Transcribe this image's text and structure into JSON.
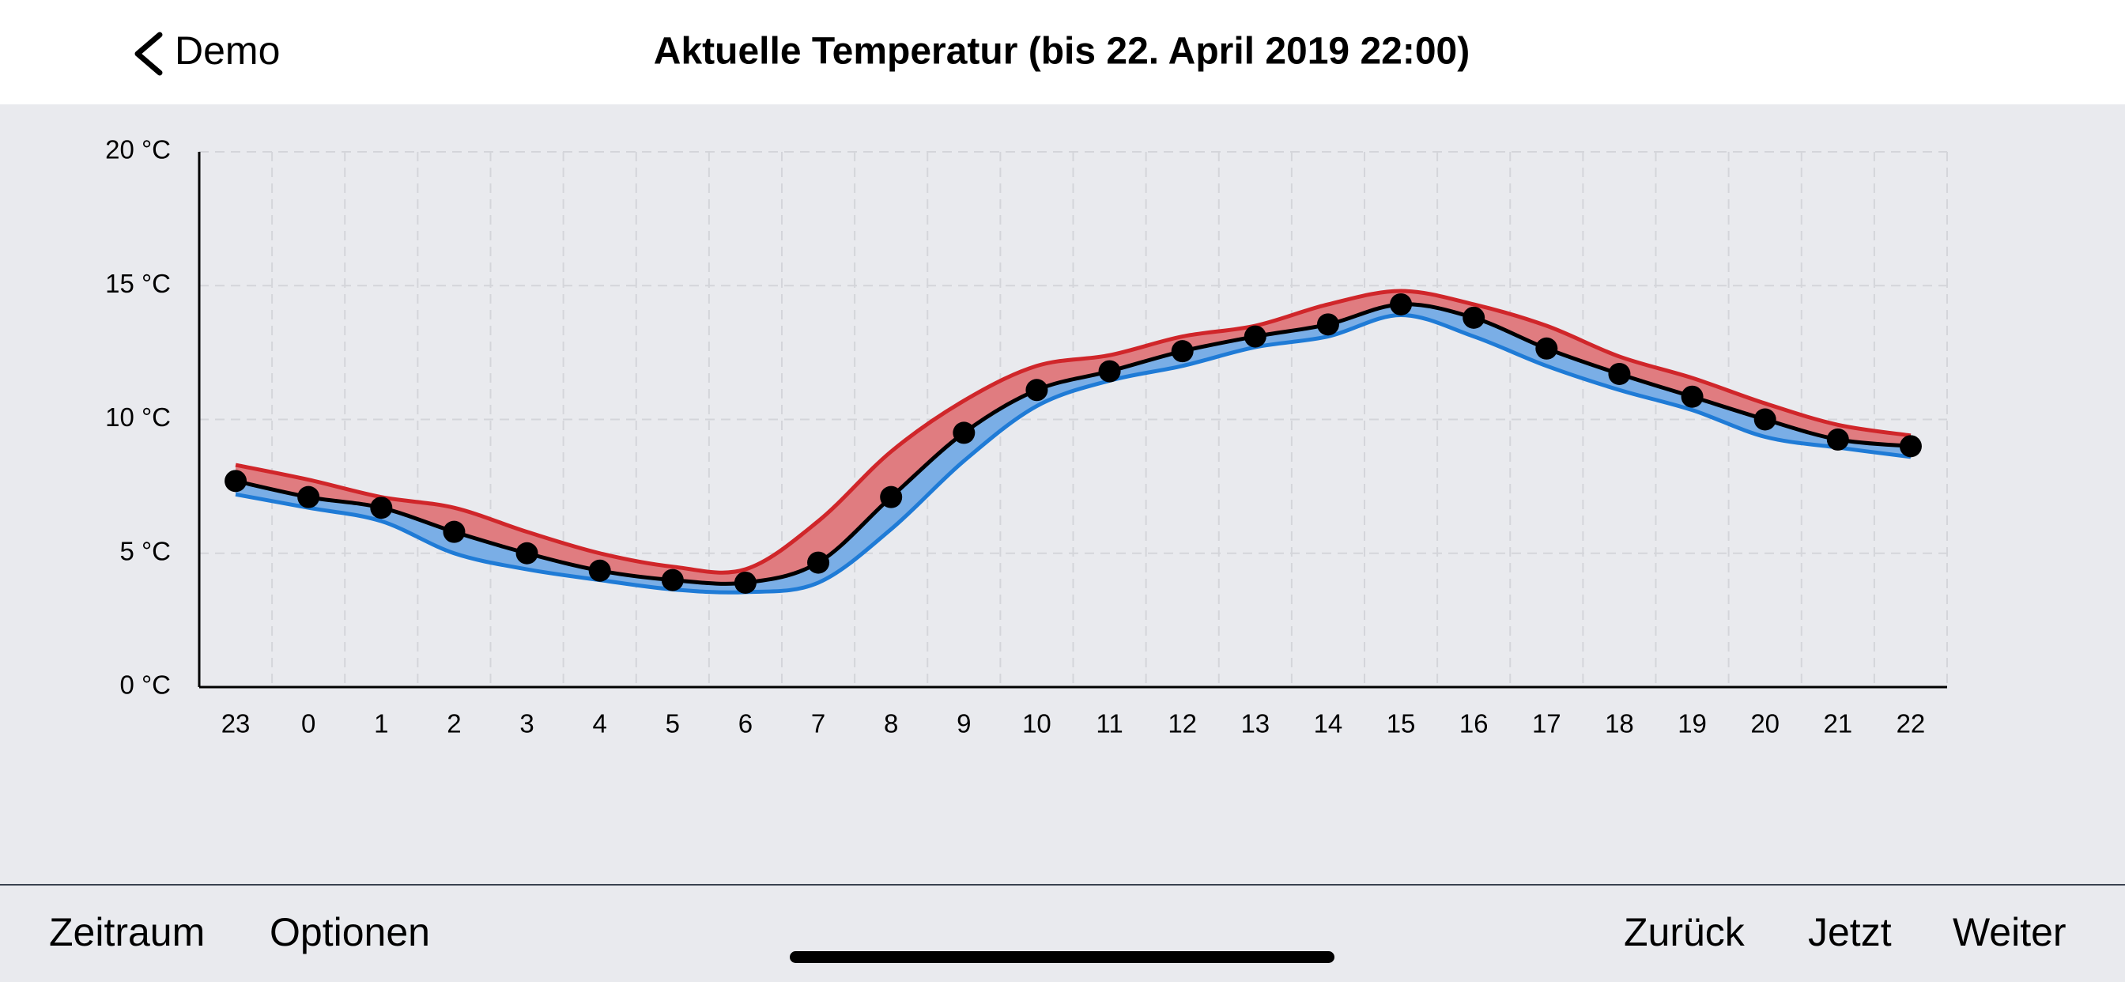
{
  "header": {
    "back": "Demo",
    "title": "Aktuelle Temperatur (bis 22. April 2019 22:00)"
  },
  "chart_data": {
    "type": "band-line",
    "categories": [
      "23",
      "0",
      "1",
      "2",
      "3",
      "4",
      "5",
      "6",
      "7",
      "8",
      "9",
      "10",
      "11",
      "12",
      "13",
      "14",
      "15",
      "16",
      "17",
      "18",
      "19",
      "20",
      "21",
      "22"
    ],
    "series": [
      {
        "color": "#d0262a",
        "values": [
          8.3,
          7.75,
          7.1,
          6.7,
          5.8,
          5.0,
          4.5,
          4.4,
          6.2,
          8.8,
          10.7,
          12.0,
          12.4,
          13.1,
          13.5,
          14.3,
          14.8,
          14.3,
          13.5,
          12.35,
          11.55,
          10.6,
          9.8,
          9.4
        ]
      },
      {
        "color": "#000000",
        "values": [
          7.7,
          7.1,
          6.7,
          5.8,
          5.0,
          4.35,
          4.0,
          3.9,
          4.65,
          7.1,
          9.5,
          11.1,
          11.8,
          12.55,
          13.1,
          13.55,
          14.3,
          13.8,
          12.65,
          11.7,
          10.85,
          10.0,
          9.25,
          9.0
        ]
      },
      {
        "color": "#1f7bd6",
        "values": [
          7.2,
          6.7,
          6.2,
          5.0,
          4.4,
          4.0,
          3.65,
          3.55,
          3.9,
          5.9,
          8.45,
          10.5,
          11.45,
          12.0,
          12.7,
          13.1,
          13.9,
          13.1,
          12.0,
          11.1,
          10.35,
          9.35,
          8.95,
          8.6
        ]
      }
    ],
    "ylim": [
      0,
      20
    ],
    "yticks": [
      {
        "value": 0,
        "label": "0 °C"
      },
      {
        "value": 5,
        "label": "5 °C"
      },
      {
        "value": 10,
        "label": "10 °C"
      },
      {
        "value": 15,
        "label": "15 °C"
      },
      {
        "value": 20,
        "label": "20 °C"
      }
    ],
    "grid": true
  },
  "toolbar": {
    "left": [
      "Zeitraum",
      "Optionen"
    ],
    "right": [
      "Zurück",
      "Jetzt",
      "Weiter"
    ]
  }
}
